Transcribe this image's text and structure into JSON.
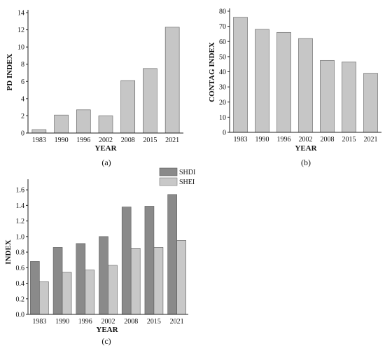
{
  "chart_data": [
    {
      "type": "bar",
      "title": "",
      "xlabel": "YEAR",
      "ylabel": "PD INDEX",
      "caption": "(a)",
      "categories": [
        "1983",
        "1990",
        "1996",
        "2002",
        "2008",
        "2015",
        "2021"
      ],
      "values": [
        0.4,
        2.1,
        2.7,
        2.0,
        6.1,
        7.5,
        12.3
      ],
      "ylim": [
        0,
        14
      ],
      "yticks": [
        "0",
        "2",
        "4",
        "6",
        "8",
        "10",
        "12",
        "14"
      ],
      "colors": {
        "bar": "#c6c6c6"
      }
    },
    {
      "type": "bar",
      "title": "",
      "xlabel": "YEAR",
      "ylabel": "CONTAG INDEX",
      "caption": "(b)",
      "categories": [
        "1983",
        "1990",
        "1996",
        "2002",
        "2008",
        "2015",
        "2021"
      ],
      "values": [
        76,
        68,
        66,
        62,
        47.5,
        46.5,
        39
      ],
      "ylim": [
        0,
        80
      ],
      "yticks": [
        "0",
        "10",
        "20",
        "30",
        "40",
        "50",
        "60",
        "70",
        "80"
      ],
      "colors": {
        "bar": "#c6c6c6"
      }
    },
    {
      "type": "bar",
      "title": "",
      "xlabel": "YEAR",
      "ylabel": "INDEX",
      "caption": "(c)",
      "categories": [
        "1983",
        "1990",
        "1996",
        "2002",
        "2008",
        "2015",
        "2021"
      ],
      "series": [
        {
          "name": "SHDI",
          "values": [
            0.68,
            0.86,
            0.91,
            1.0,
            1.38,
            1.39,
            1.54
          ],
          "color": "#8a8a8a"
        },
        {
          "name": "SHEI",
          "values": [
            0.42,
            0.54,
            0.57,
            0.63,
            0.85,
            0.86,
            0.95
          ],
          "color": "#c8c8c8"
        }
      ],
      "ylim": [
        0,
        1.7
      ],
      "yticks": [
        "0.0",
        "0.2",
        "0.4",
        "0.6",
        "0.8",
        "1.0",
        "1.2",
        "1.4",
        "1.6"
      ],
      "legend": "top-left, above plot"
    }
  ]
}
